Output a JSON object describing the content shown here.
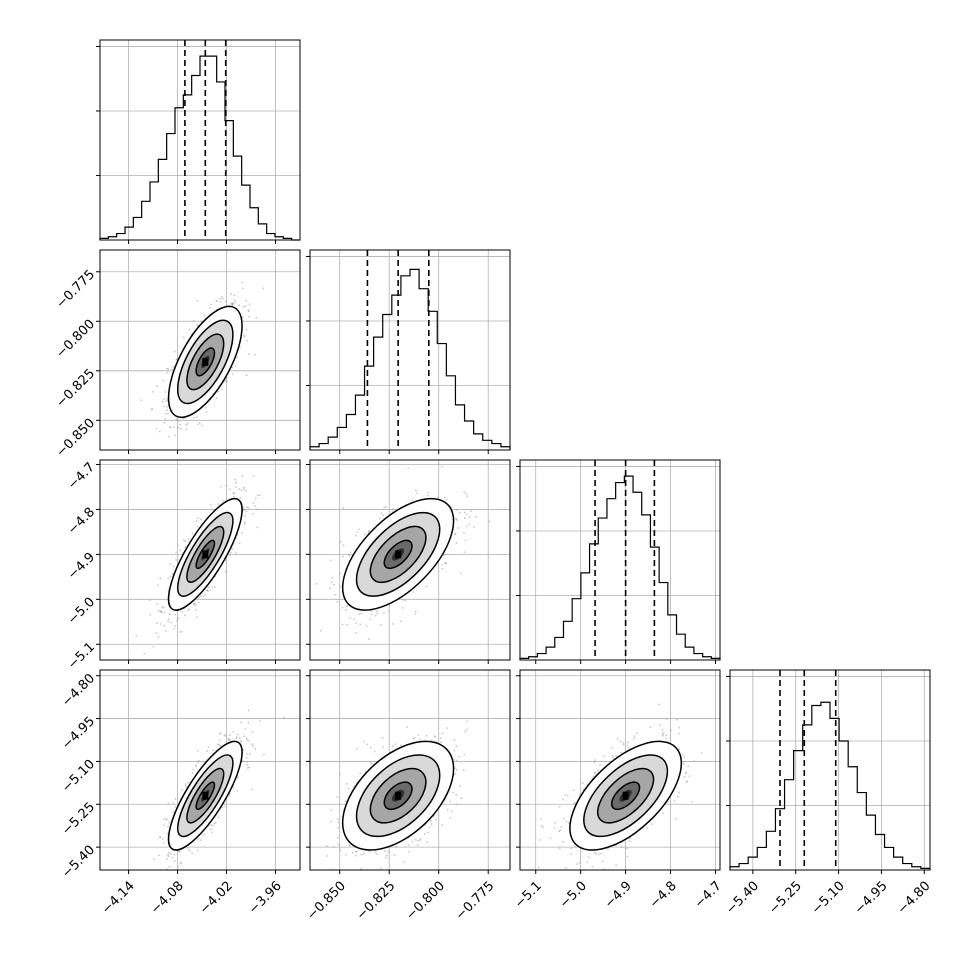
{
  "chart_data": {
    "type": "corner",
    "parameters": [
      {
        "ticks": [
          -4.14,
          -4.08,
          -4.02,
          -3.96
        ],
        "tick_labels": [
          "−4.14",
          "−4.08",
          "−4.02",
          "−3.96"
        ],
        "range": [
          -4.175,
          -3.93
        ],
        "quantiles": [
          -4.071,
          -4.046,
          -4.021
        ],
        "hist_bins": [
          0.5,
          1,
          2,
          4,
          7,
          12,
          18,
          25,
          33,
          41,
          45,
          51,
          57,
          57,
          49,
          37,
          26,
          17,
          10,
          5,
          2,
          1,
          0.5,
          0
        ],
        "hist_ylim": [
          0,
          62
        ]
      },
      {
        "ticks": [
          -0.85,
          -0.825,
          -0.8,
          -0.775
        ],
        "tick_labels": [
          "−0.850",
          "−0.825",
          "−0.800",
          "−0.775"
        ],
        "range": [
          -0.865,
          -0.764
        ],
        "quantiles": [
          -0.836,
          -0.8205,
          -0.805
        ],
        "hist_bins": [
          1,
          2,
          4,
          7,
          11,
          17,
          26,
          35,
          42,
          48,
          54,
          56,
          50,
          43,
          33,
          23,
          14,
          9,
          5,
          3,
          2,
          1
        ],
        "hist_ylim": [
          0,
          62
        ]
      },
      {
        "ticks": [
          -5.1,
          -5.0,
          -4.9,
          -4.8,
          -4.7
        ],
        "tick_labels": [
          "−5.1",
          "−5.0",
          "−4.9",
          "−4.8",
          "−4.7"
        ],
        "range": [
          -5.135,
          -4.69
        ],
        "quantiles": [
          -4.968,
          -4.9,
          -4.836
        ],
        "hist_bins": [
          0.5,
          1,
          2,
          4,
          7,
          12,
          19,
          27,
          36,
          44,
          50,
          55,
          57,
          52,
          45,
          35,
          24,
          14,
          8,
          4,
          2,
          1,
          0.5
        ],
        "hist_ylim": [
          0,
          62
        ]
      },
      {
        "ticks": [
          -5.4,
          -5.25,
          -5.1,
          -4.95,
          -4.8
        ],
        "tick_labels": [
          "−5.40",
          "−5.25",
          "−5.10",
          "−4.95",
          "−4.80"
        ],
        "range": [
          -5.48,
          -4.78
        ],
        "quantiles": [
          -5.305,
          -5.22,
          -5.11
        ],
        "hist_bins": [
          1,
          2,
          4,
          7,
          12,
          19,
          28,
          37,
          45,
          51,
          52,
          47,
          40,
          32,
          24,
          17,
          11,
          7,
          4,
          2,
          1,
          0.5
        ],
        "hist_ylim": [
          0,
          62
        ]
      }
    ],
    "centers": [
      -4.046,
      -0.8205,
      -4.9,
      -5.22
    ],
    "sigmas": [
      0.0225,
      0.014,
      0.062,
      0.095
    ],
    "correlations": [
      [
        1,
        0.65,
        0.8,
        0.8
      ],
      [
        0.65,
        1,
        0.6,
        0.5
      ],
      [
        0.8,
        0.6,
        1,
        0.6
      ],
      [
        0.8,
        0.5,
        0.6,
        1
      ]
    ],
    "contour_levels_sigma": [
      0.5,
      1.0,
      1.5,
      2.0
    ],
    "grid": true,
    "colors": {
      "line": "#000000",
      "scatter": "#9a9a9a",
      "grid": "#b0b0b0"
    }
  }
}
